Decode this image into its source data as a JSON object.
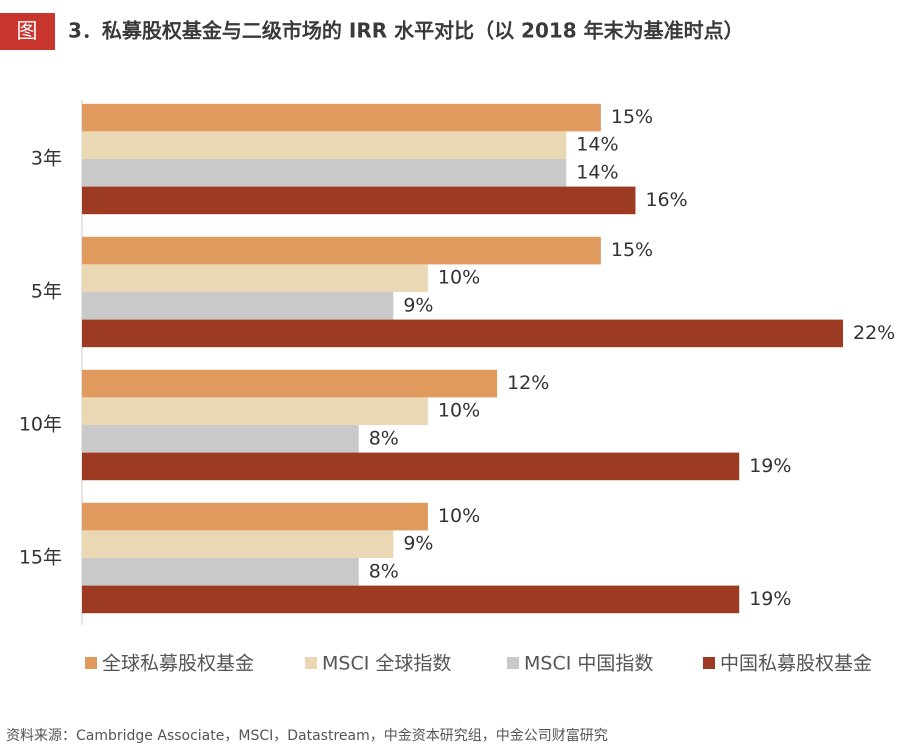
{
  "chart_data": {
    "type": "hbar",
    "figure_label": "图",
    "title": "3．私募股权基金与二级市场的 IRR 水平对比（以 2018 年末为基准时点）",
    "categories": [
      "3年",
      "5年",
      "10年",
      "15年"
    ],
    "series": [
      {
        "name": "全球私募股权基金",
        "color": "#e09a5e",
        "values": [
          15,
          15,
          12,
          10
        ],
        "value_labels": [
          "15%",
          "15%",
          "12%",
          "10%"
        ]
      },
      {
        "name": "MSCI 全球指数",
        "color": "#ead7b3",
        "values": [
          14,
          10,
          10,
          9
        ],
        "value_labels": [
          "14%",
          "10%",
          "10%",
          "9%"
        ]
      },
      {
        "name": "MSCI 中国指数",
        "color": "#c9c9c9",
        "values": [
          14,
          9,
          8,
          8
        ],
        "value_labels": [
          "14%",
          "9%",
          "8%",
          "8%"
        ]
      },
      {
        "name": "中国私募股权基金",
        "color": "#9c3a22",
        "values": [
          16,
          22,
          19,
          19
        ],
        "value_labels": [
          "16%",
          "22%",
          "19%",
          "19%"
        ]
      }
    ],
    "legend": "bottom",
    "source": "资料来源：Cambridge Associate，MSCI，Datastream，中金资本研究组，中金公司财富研究"
  }
}
